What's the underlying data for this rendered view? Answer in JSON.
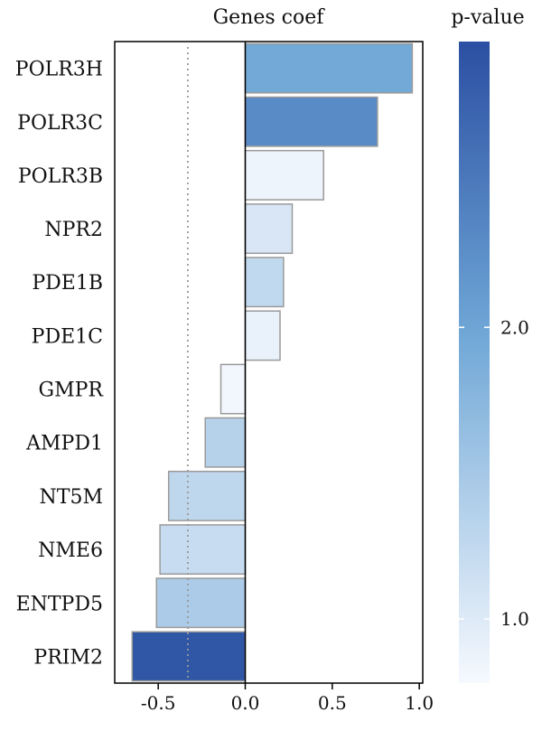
{
  "chart_data": {
    "type": "bar",
    "orientation": "horizontal",
    "title": "Genes coef",
    "xlim": [
      -0.75,
      1.02
    ],
    "x_ticks": [
      "-0.5",
      "0.0",
      "0.5",
      "1.0"
    ],
    "x_tick_values": [
      -0.5,
      0.0,
      0.5,
      1.0
    ],
    "reference_line_x": -0.33,
    "categories": [
      "POLR3H",
      "POLR3C",
      "POLR3B",
      "NPR2",
      "PDE1B",
      "PDE1C",
      "GMPR",
      "AMPD1",
      "NT5M",
      "NME6",
      "ENTPD5",
      "PRIM2"
    ],
    "values": [
      0.96,
      0.76,
      0.45,
      0.27,
      0.22,
      0.2,
      -0.14,
      -0.23,
      -0.44,
      -0.49,
      -0.51,
      -0.65
    ],
    "pvalues": [
      1.95,
      2.3,
      0.85,
      1.05,
      1.25,
      0.9,
      0.82,
      1.35,
      1.28,
      1.2,
      1.45,
      2.9
    ],
    "colorbar": {
      "label": "p-value",
      "range": [
        0.78,
        2.98
      ],
      "ticks": [
        "1.0",
        "2.0"
      ],
      "tick_values": [
        1.0,
        2.0
      ],
      "color_low": "#f6f9fe",
      "color_mid": "#6ea6d6",
      "color_high": "#2b4fa2"
    },
    "grid": false,
    "legend": "colorbar-right"
  }
}
